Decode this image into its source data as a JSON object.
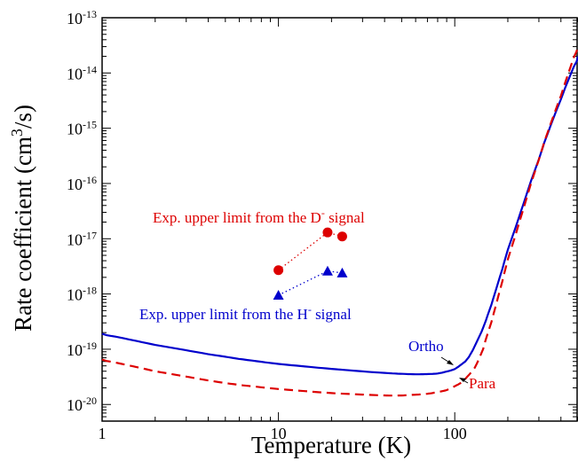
{
  "chart_data": {
    "type": "line",
    "title": "",
    "xlabel": "Temperature (K)",
    "ylabel_main": "Rate coefficient (cm",
    "ylabel_sup": "3",
    "ylabel_tail": "/s)",
    "x_scale": "log",
    "y_scale": "log",
    "xlim": [
      1,
      500
    ],
    "ylim": [
      5e-21,
      1e-13
    ],
    "grid": false,
    "x_ticks": [
      {
        "value": 1,
        "label": "1"
      },
      {
        "value": 10,
        "label": "10"
      },
      {
        "value": 100,
        "label": "100"
      }
    ],
    "y_ticks": [
      {
        "exp": -20,
        "base": "10",
        "sup": "-20"
      },
      {
        "exp": -19,
        "base": "10",
        "sup": "-19"
      },
      {
        "exp": -18,
        "base": "10",
        "sup": "-18"
      },
      {
        "exp": -17,
        "base": "10",
        "sup": "-17"
      },
      {
        "exp": -16,
        "base": "10",
        "sup": "-16"
      },
      {
        "exp": -15,
        "base": "10",
        "sup": "-15"
      },
      {
        "exp": -14,
        "base": "10",
        "sup": "-14"
      },
      {
        "exp": -13,
        "base": "10",
        "sup": "-13"
      }
    ],
    "series": [
      {
        "name": "Ortho",
        "color": "#0000cc",
        "style": "solid",
        "x": [
          1,
          2,
          5,
          10,
          20,
          40,
          60,
          80,
          100,
          120,
          150,
          200,
          300,
          400,
          500
        ],
        "y": [
          1.9e-19,
          1.2e-19,
          7.2e-20,
          5.4e-20,
          4.4e-20,
          3.7e-20,
          3.5e-20,
          3.6e-20,
          4.3e-20,
          6.7e-20,
          3e-19,
          6e-18,
          3e-16,
          3.5e-15,
          2e-14
        ]
      },
      {
        "name": "Para",
        "color": "#dd0000",
        "style": "dashed",
        "x": [
          1,
          2,
          5,
          10,
          20,
          40,
          50,
          70,
          90,
          110,
          130,
          150,
          200,
          300,
          400,
          500
        ],
        "y": [
          6.5e-20,
          4e-20,
          2.4e-20,
          1.9e-20,
          1.6e-20,
          1.45e-20,
          1.45e-20,
          1.55e-20,
          1.8e-20,
          2.5e-20,
          4.5e-20,
          1.3e-19,
          4e-18,
          3e-16,
          4e-15,
          3.2e-14
        ]
      }
    ],
    "experimental": [
      {
        "name": "Exp. upper limit from the D signal",
        "color": "#dd0000",
        "marker": "circle",
        "x": [
          10,
          19,
          23
        ],
        "y": [
          2.7e-18,
          1.3e-17,
          1.1e-17
        ]
      },
      {
        "name": "Exp. upper limit from the H signal",
        "color": "#0000cc",
        "marker": "triangle",
        "x": [
          10,
          19,
          23
        ],
        "y": [
          9.5e-19,
          2.6e-18,
          2.4e-18
        ]
      }
    ],
    "annotations": {
      "d_label_main": "Exp. upper limit from the D",
      "d_label_sup": "-",
      "d_label_tail": " signal",
      "h_label_main": "Exp. upper limit from the H",
      "h_label_sup": "-",
      "h_label_tail": " signal",
      "ortho": "Ortho",
      "para": "Para"
    }
  }
}
